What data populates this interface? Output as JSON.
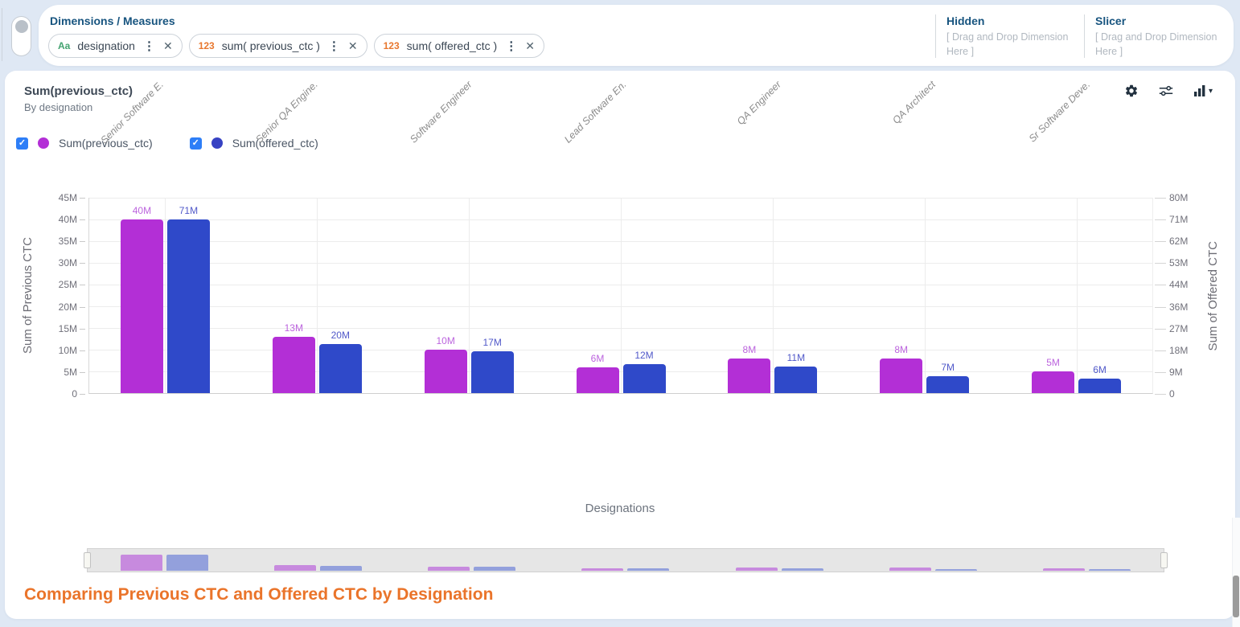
{
  "toolbar": {
    "section_title": "Dimensions / Measures",
    "fields": [
      {
        "type": "dimension",
        "type_icon": "Aa",
        "label": "designation"
      },
      {
        "type": "measure",
        "type_icon": "123",
        "label": "sum( previous_ctc )"
      },
      {
        "type": "measure",
        "type_icon": "123",
        "label": "sum( offered_ctc )"
      }
    ],
    "kebab_glyph": "⋮",
    "close_glyph": "✕",
    "hidden": {
      "title": "Hidden",
      "placeholder": "[ Drag and Drop Dimension Here ]"
    },
    "slicer": {
      "title": "Slicer",
      "placeholder": "[ Drag and Drop Dimension Here ]"
    }
  },
  "chart_header": {
    "title": "Sum(previous_ctc)",
    "subtitle": "By designation",
    "icons": [
      "settings-icon",
      "filter-sliders-icon",
      "chart-type-icon"
    ]
  },
  "legend": [
    {
      "label": "Sum(previous_ctc)",
      "checked": true,
      "dot_color": "#b32fd6",
      "check_glyph": "✓"
    },
    {
      "label": "Sum(offered_ctc)",
      "checked": true,
      "dot_color": "#3742c3",
      "check_glyph": "✓"
    }
  ],
  "caption": "Comparing Previous CTC and Offered CTC by Designation",
  "colors": {
    "accent_orange": "#ea742a",
    "header_navy": "#17547f",
    "checkbox_blue": "#2d7ef7",
    "page_background": "#dfe8f4"
  },
  "chart_data": {
    "type": "bar",
    "categories": [
      "Senior Software E.",
      "Senior QA Engine.",
      "Software Engineer",
      "Lead Software En.",
      "QA Engineer",
      "QA Architect",
      "Sr Software Deve."
    ],
    "series": [
      {
        "name": "Sum(previous_ctc)",
        "axis": "left",
        "color": "#b32fd6",
        "label_color": "#bc64de",
        "strip_color": "#c78ade",
        "values_m": [
          40,
          13,
          10,
          6,
          8,
          8,
          5
        ]
      },
      {
        "name": "Sum(offered_ctc)",
        "axis": "right",
        "color": "#2f49c9",
        "label_color": "#5058c9",
        "strip_color": "#93a0dc",
        "values_m": [
          71,
          20,
          17,
          12,
          11,
          7,
          6
        ]
      }
    ],
    "unit": "M",
    "left_axis": {
      "title": "Sum of Previous CTC",
      "max_m": 45,
      "ticks": [
        "45M",
        "40M",
        "35M",
        "30M",
        "25M",
        "20M",
        "15M",
        "10M",
        "5M",
        "0"
      ]
    },
    "right_axis": {
      "title": "Sum of Offered CTC",
      "max_m": 80,
      "ticks": [
        "80M",
        "71M",
        "62M",
        "53M",
        "44M",
        "36M",
        "27M",
        "18M",
        "9M",
        "0"
      ]
    },
    "xlabel": "Designations",
    "grid": true,
    "legend_position": "top-left"
  }
}
